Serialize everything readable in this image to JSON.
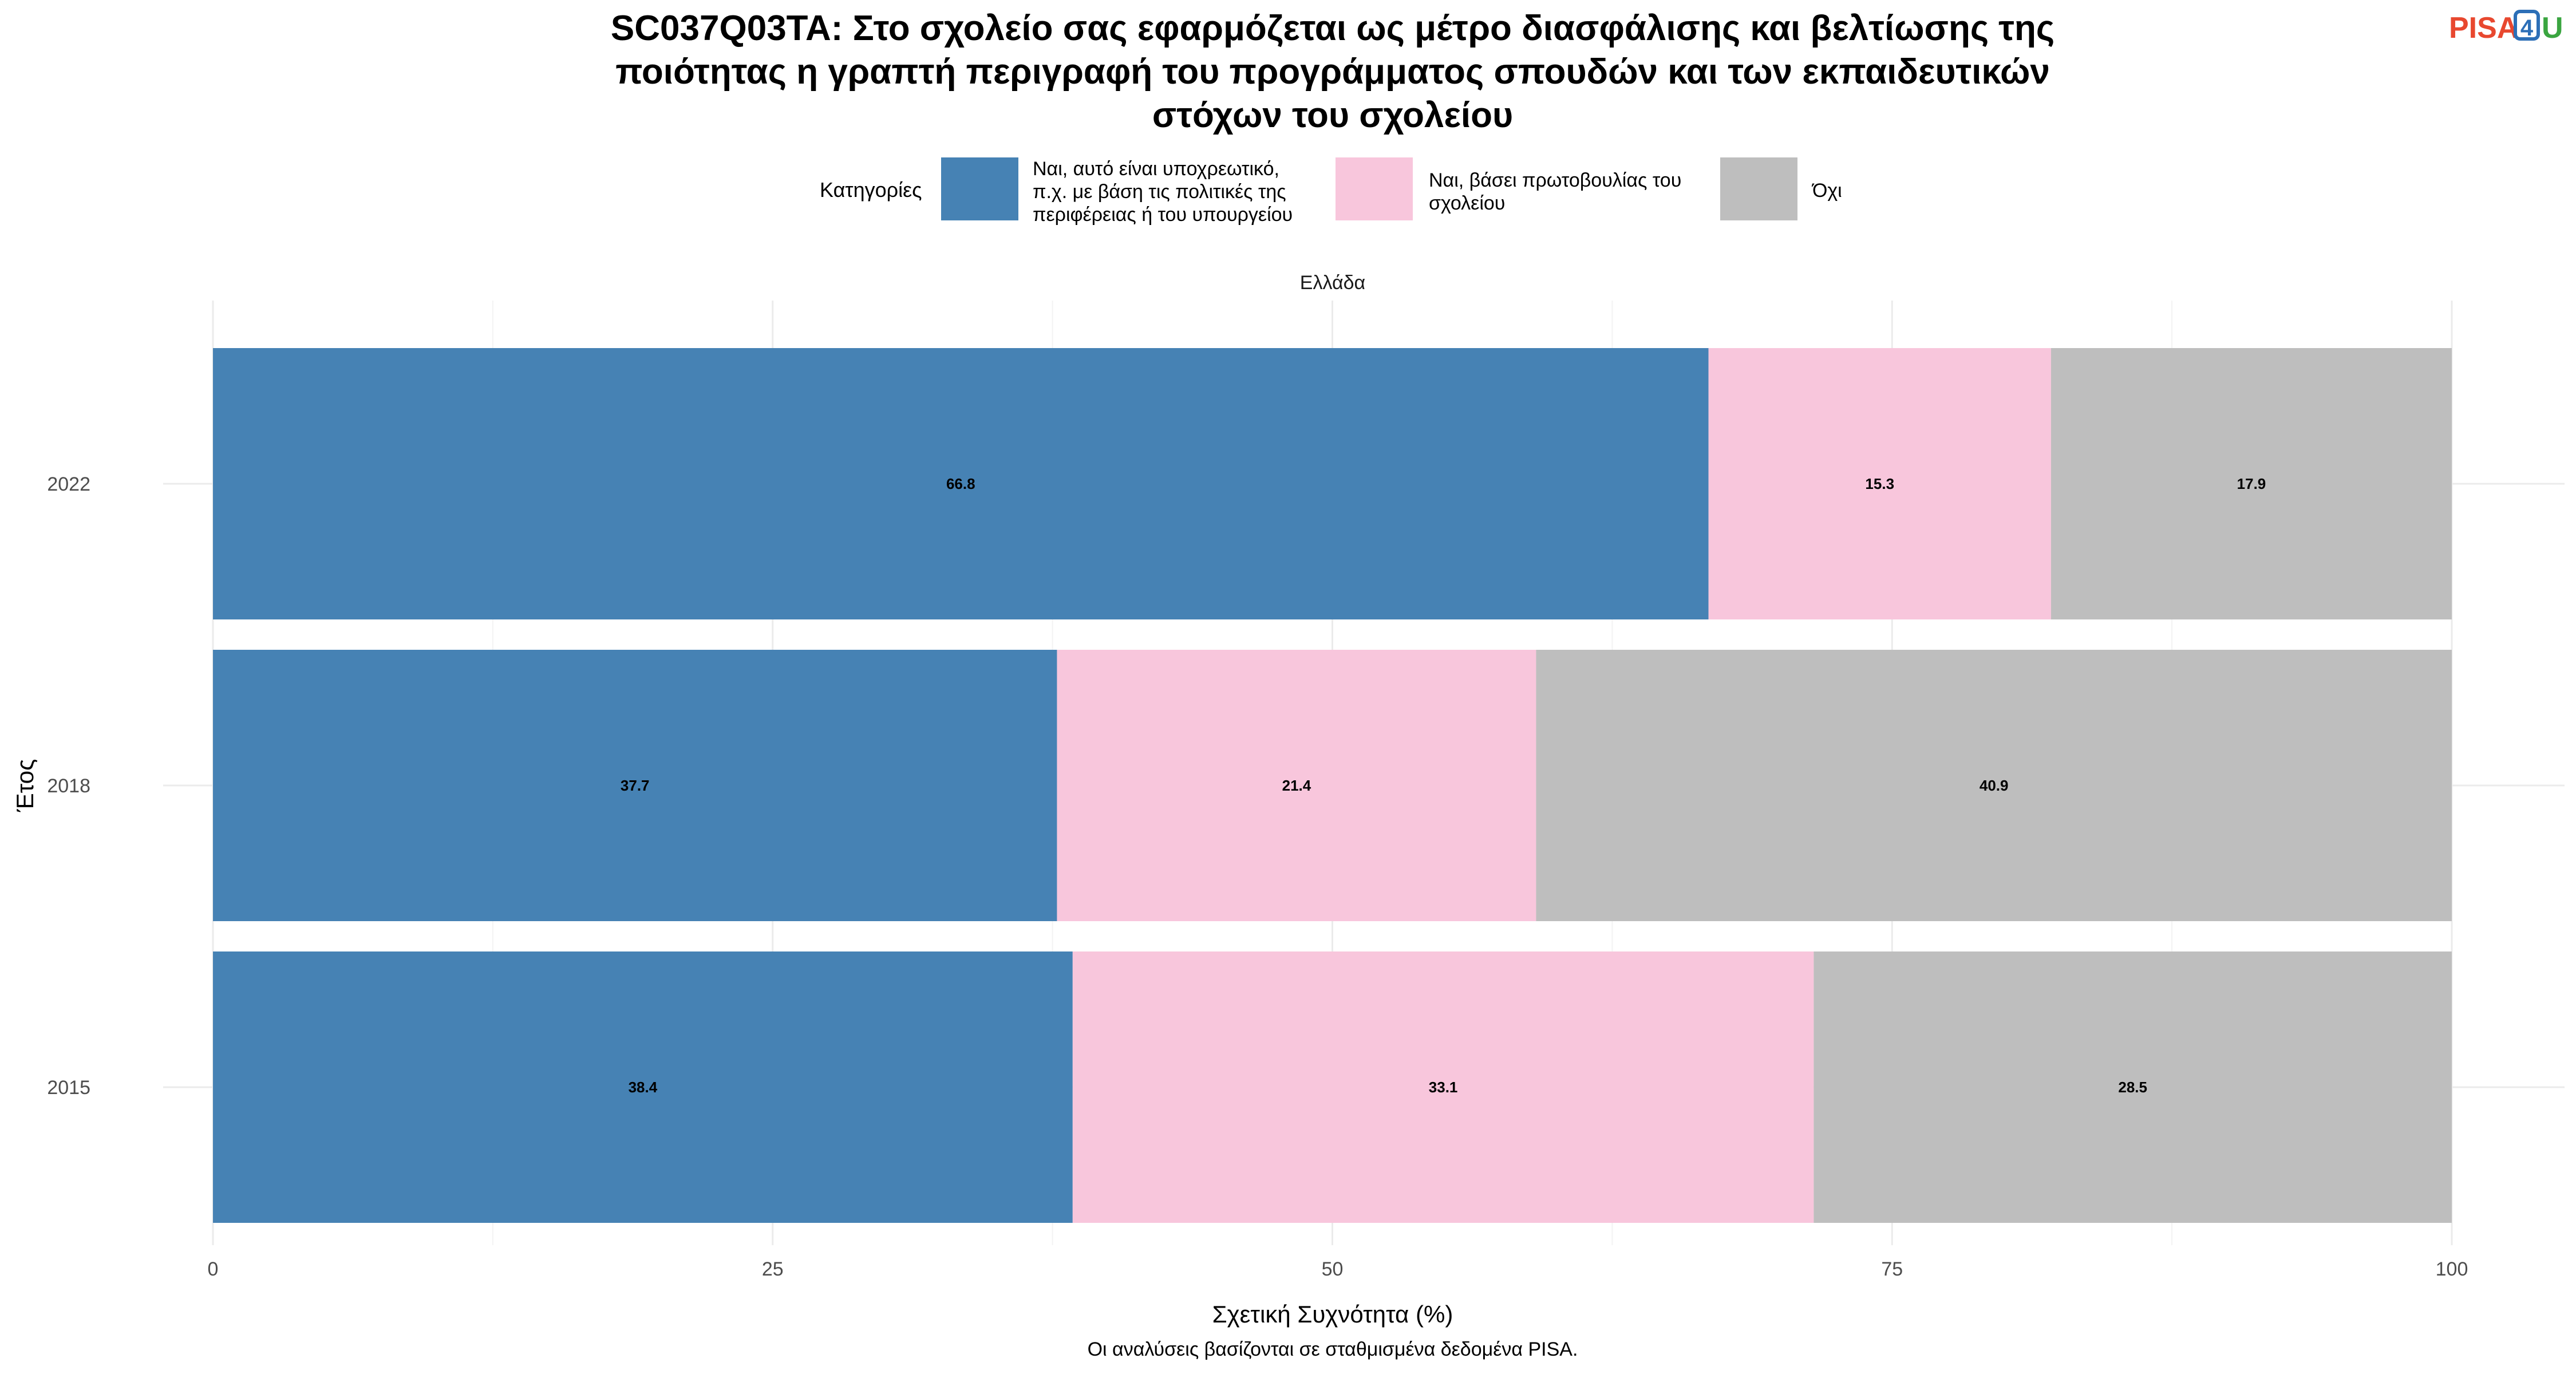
{
  "title_lines": [
    "SC037Q03TA: Στο σχολείο σας εφαρμόζεται ως μέτρο διασφάλισης και βελτίωσης της",
    "ποιότητας η γραπτή περιγραφή του προγράμματος σπουδών και των εκπαιδευτικών",
    "στόχων του σχολείου"
  ],
  "logo": {
    "part1": "PISA",
    "part2": "4",
    "part3": "U",
    "colors": {
      "part1": "#e8482f",
      "part2": "#2c6fb7",
      "part3": "#3aa540"
    }
  },
  "legend": {
    "title": "Κατηγορίες",
    "items": [
      {
        "lines": [
          "Ναι, αυτό είναι υποχρεωτικό,",
          "π.χ. με βάση τις πολιτικές της",
          "περιφέρειας ή του υπουργείου"
        ],
        "color": "#4682b4"
      },
      {
        "lines": [
          "Ναι, βάσει πρωτοβουλίας του",
          "σχολείου"
        ],
        "color": "#f8c6dc"
      },
      {
        "lines": [
          "Όχι"
        ],
        "color": "#bebebe"
      }
    ]
  },
  "facet_label": "Ελλάδα",
  "caption": "Οι αναλύσεις βασίζονται σε σταθμισμένα δεδομένα PISA.",
  "chart_data": {
    "type": "bar",
    "orientation": "horizontal",
    "stacked": true,
    "categories": [
      "2022",
      "2018",
      "2015"
    ],
    "series": [
      {
        "name": "Ναι, αυτό είναι υποχρεωτικό, π.χ. με βάση τις πολιτικές της περιφέρειας ή του υπουργείου",
        "values": [
          66.8,
          37.7,
          38.4
        ],
        "color": "#4682b4"
      },
      {
        "name": "Ναι, βάσει πρωτοβουλίας του σχολείου",
        "values": [
          15.3,
          21.4,
          33.1
        ],
        "color": "#f8c6dc"
      },
      {
        "name": "Όχι",
        "values": [
          17.9,
          40.9,
          28.5
        ],
        "color": "#bebebe"
      }
    ],
    "xlabel": "Σχετική Συχνότητα (%)",
    "ylabel": "Έτος",
    "xlim": [
      0,
      100
    ],
    "xticks": [
      0,
      25,
      50,
      75,
      100
    ],
    "xtick_labels": [
      "0",
      "25",
      "50",
      "75",
      "100"
    ],
    "grid": true,
    "legend_position": "top"
  }
}
